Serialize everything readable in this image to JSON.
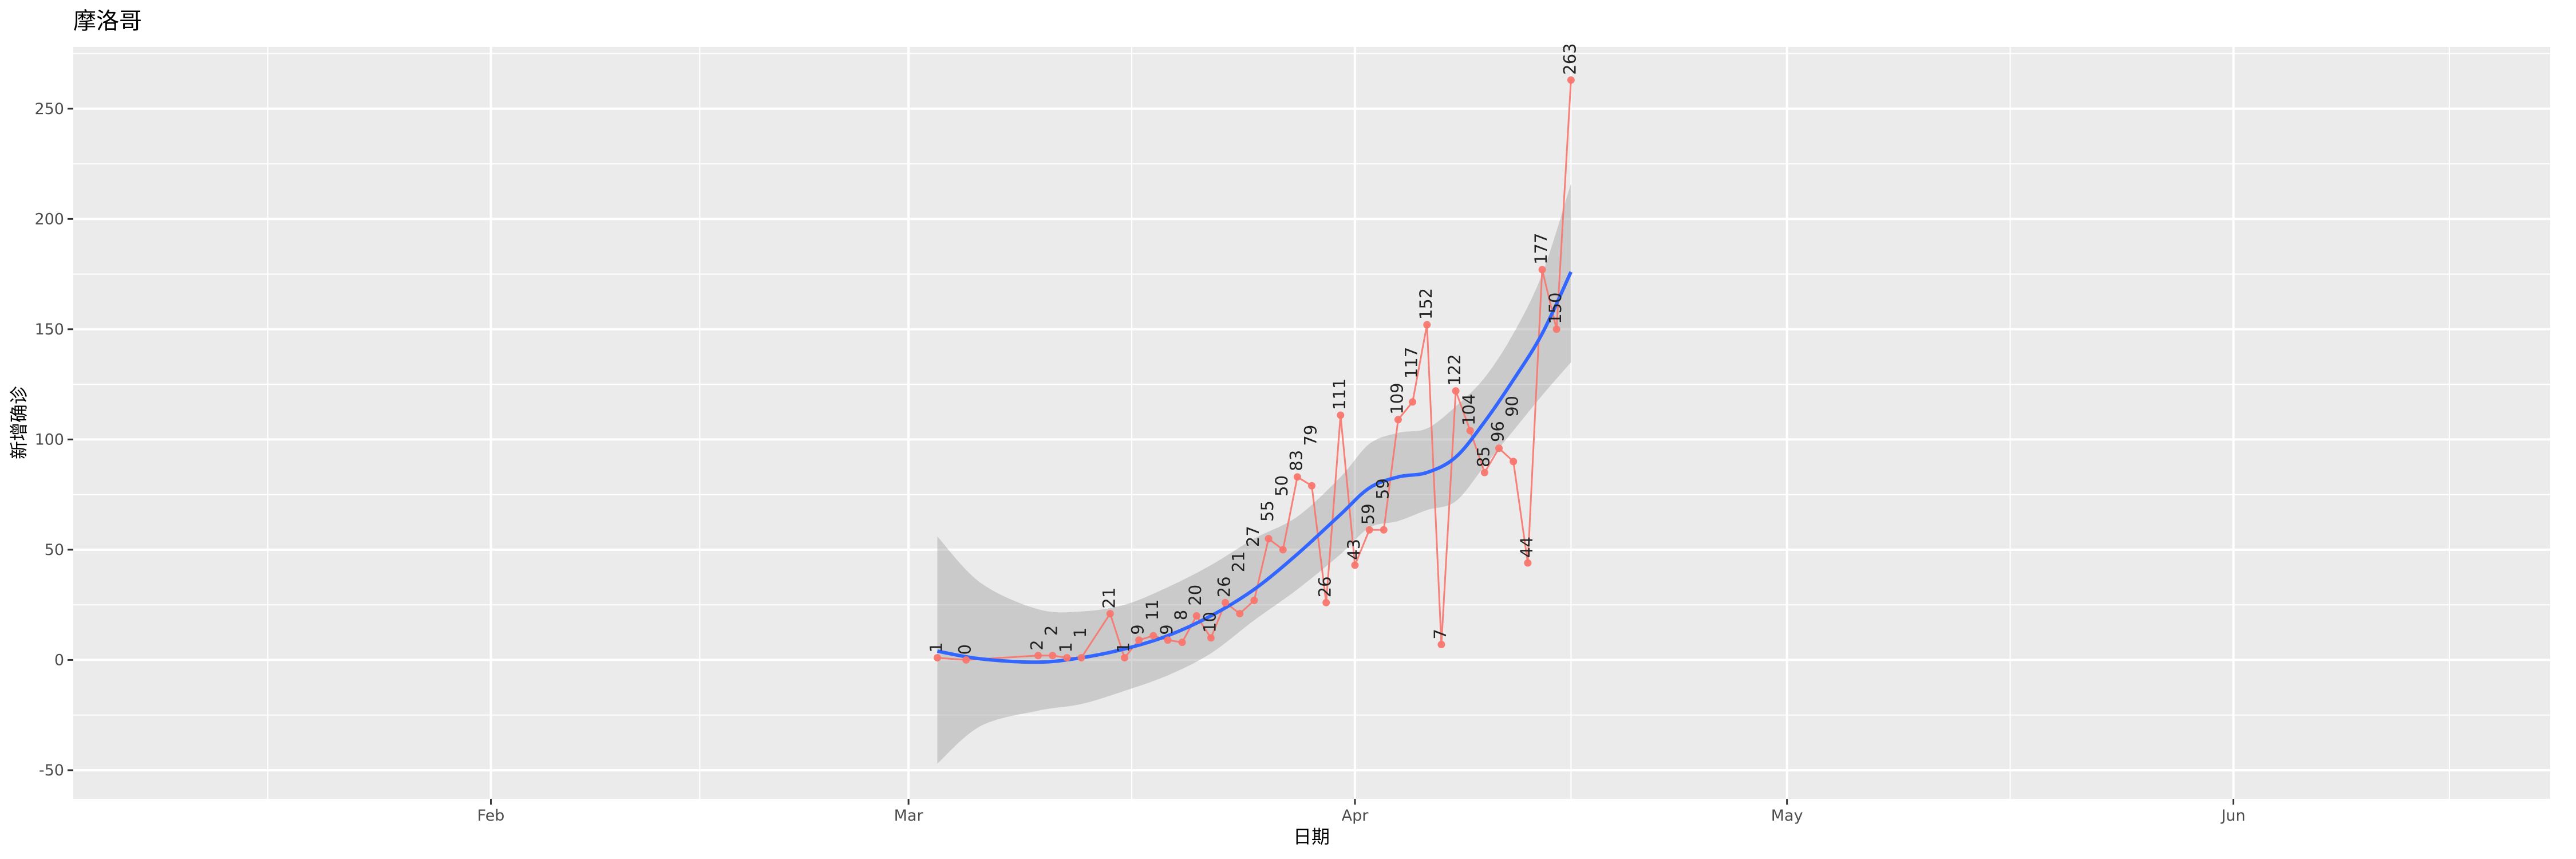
{
  "chart_data": {
    "type": "line",
    "title": "摩洛哥",
    "xlabel": "日期",
    "ylabel": "新增确诊",
    "x_ticks": [
      "Feb",
      "Mar",
      "Apr",
      "May",
      "Jun"
    ],
    "y_ticks": [
      -50,
      0,
      50,
      100,
      150,
      200,
      250
    ],
    "xlim": [
      "01-03",
      "06-23"
    ],
    "ylim": [
      -63,
      278
    ],
    "grid": true,
    "series": [
      {
        "x": [
          "03-03",
          "03-05",
          "03-10",
          "03-11",
          "03-12",
          "03-13",
          "03-15",
          "03-16",
          "03-17",
          "03-18",
          "03-19",
          "03-20",
          "03-21",
          "03-22",
          "03-23",
          "03-24",
          "03-25",
          "03-26",
          "03-27",
          "03-28",
          "03-29",
          "03-30",
          "03-31",
          "04-01",
          "04-02",
          "04-03",
          "04-04",
          "04-05",
          "04-06",
          "04-07",
          "04-08",
          "04-09",
          "04-10",
          "04-11",
          "04-12",
          "04-13",
          "04-14",
          "04-15",
          "04-16"
        ],
        "y": [
          1,
          0,
          2,
          2,
          1,
          1,
          21,
          1,
          9,
          11,
          9,
          8,
          20,
          10,
          26,
          21,
          27,
          55,
          50,
          83,
          79,
          26,
          111,
          43,
          59,
          59,
          109,
          117,
          152,
          7,
          122,
          104,
          85,
          96,
          90,
          44,
          177,
          150,
          263
        ],
        "color": "#F8766D"
      }
    ],
    "smooth": {
      "x": [
        "03-03",
        "03-06",
        "03-10",
        "03-13",
        "03-16",
        "03-19",
        "03-22",
        "03-25",
        "03-28",
        "03-31",
        "04-02",
        "04-04",
        "04-06",
        "04-08",
        "04-10",
        "04-12",
        "04-14",
        "04-16"
      ],
      "y": [
        4,
        0.5,
        -1,
        1,
        5,
        11,
        20,
        32,
        48,
        66,
        78,
        83,
        85,
        92,
        108,
        127,
        148,
        176
      ],
      "lower": [
        -47,
        -30,
        -23,
        -20,
        -14,
        -7,
        3,
        18,
        32,
        48,
        60,
        63,
        68,
        72,
        88,
        104,
        120,
        135
      ],
      "upper": [
        56,
        35,
        23,
        22,
        25,
        33,
        43,
        55,
        65,
        83,
        98,
        103,
        105,
        115,
        128,
        148,
        175,
        216
      ],
      "color": "#3366FF",
      "ribbon_color": "#999999"
    },
    "panel_background": "#EBEBEB"
  }
}
